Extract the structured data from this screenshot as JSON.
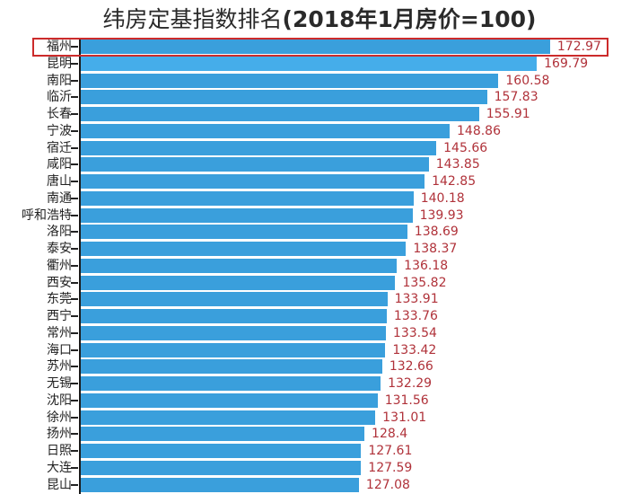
{
  "title": "纬房定基指数排名(2018年1月房价=100)",
  "title_parts": {
    "cn": "纬房定基指数排名",
    "paren": "(2018年1月房价=100)"
  },
  "highlight": {
    "city": "福州",
    "color": "#cc2b2b"
  },
  "colors": {
    "bar": "#3a9fdc",
    "value_text": "#b0323a",
    "highlight_border": "#cc2b2b"
  },
  "chart_data": {
    "type": "bar",
    "orientation": "horizontal",
    "title": "纬房定基指数排名(2018年1月房价=100)",
    "xlabel": "",
    "ylabel": "",
    "grid": false,
    "legend": null,
    "categories": [
      "福州",
      "昆明",
      "南阳",
      "临沂",
      "长春",
      "宁波",
      "宿迁",
      "咸阳",
      "唐山",
      "南通",
      "呼和浩特",
      "洛阳",
      "泰安",
      "衢州",
      "西安",
      "东莞",
      "西宁",
      "常州",
      "海口",
      "苏州",
      "无锡",
      "沈阳",
      "徐州",
      "扬州",
      "日照",
      "大连",
      "昆山"
    ],
    "values": [
      172.97,
      169.79,
      160.58,
      157.83,
      155.91,
      148.86,
      145.66,
      143.85,
      142.85,
      140.18,
      139.93,
      138.69,
      138.37,
      136.18,
      135.82,
      133.91,
      133.76,
      133.54,
      133.42,
      132.66,
      132.29,
      131.56,
      131.01,
      128.4,
      127.61,
      127.59,
      127.08
    ],
    "value_labels": [
      "172.97",
      "169.79",
      "160.58",
      "157.83",
      "155.91",
      "148.86",
      "145.66",
      "143.85",
      "142.85",
      "140.18",
      "139.93",
      "138.69",
      "138.37",
      "136.18",
      "135.82",
      "133.91",
      "133.76",
      "133.54",
      "133.42",
      "132.66",
      "132.29",
      "131.56",
      "131.01",
      "128.4",
      "127.61",
      "127.59",
      "127.08"
    ],
    "annotations": [
      {
        "type": "highlight-box",
        "target": "福州"
      }
    ]
  }
}
